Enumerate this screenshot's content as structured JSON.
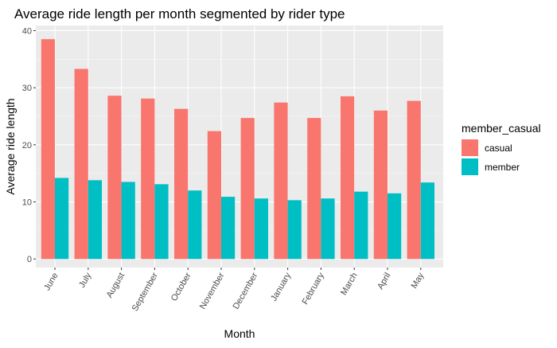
{
  "chart_data": {
    "type": "bar",
    "title": "Average ride length per month segmented by rider type",
    "xlabel": "Month",
    "ylabel": "Average ride length",
    "categories": [
      "June",
      "July",
      "August",
      "September",
      "October",
      "November",
      "December",
      "January",
      "February",
      "March",
      "April",
      "May"
    ],
    "series": [
      {
        "name": "casual",
        "color": "#F8766D",
        "values": [
          38.5,
          33.3,
          28.6,
          28.1,
          26.3,
          22.4,
          24.7,
          27.4,
          24.7,
          28.5,
          26.0,
          27.7
        ]
      },
      {
        "name": "member",
        "color": "#00BFC4",
        "values": [
          14.2,
          13.8,
          13.5,
          13.1,
          12.0,
          10.9,
          10.6,
          10.3,
          10.6,
          11.8,
          11.5,
          13.4
        ]
      }
    ],
    "ylim": [
      0,
      40
    ],
    "yticks": [
      0,
      10,
      20,
      30,
      40
    ],
    "grid": true,
    "panel_background": "#EBEBEB",
    "legend": {
      "title": "member_casual",
      "position": "right"
    }
  }
}
